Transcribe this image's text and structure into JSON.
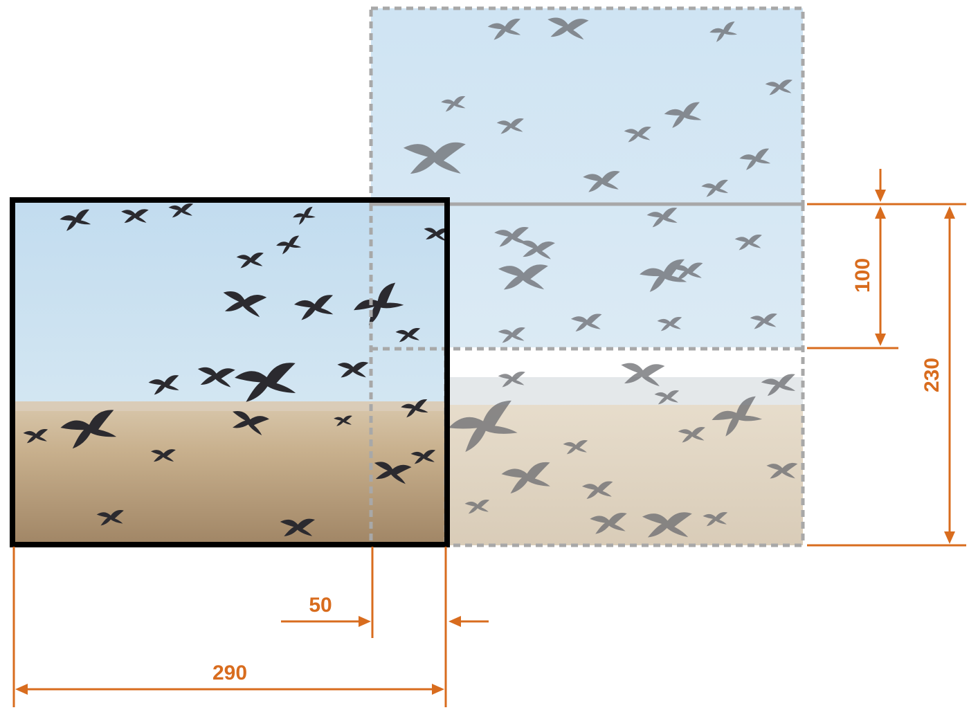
{
  "figure": {
    "accent_color": "#d86c1e",
    "main_frame_color": "#000000",
    "tile_outline_color": "#a8a8a8",
    "sky_color": "#c6e0f1",
    "ground_color": "#c9b494",
    "bird_color": "#2b2a2f"
  },
  "dimensions": {
    "width": "290",
    "overlap_width": "50",
    "height": "230",
    "tile_height": "100"
  },
  "scene": {
    "subject": "flock-of-birds-over-field",
    "main_crop": "solid-black-frame",
    "neighbor_tiles": "dashed-gray-frames"
  }
}
